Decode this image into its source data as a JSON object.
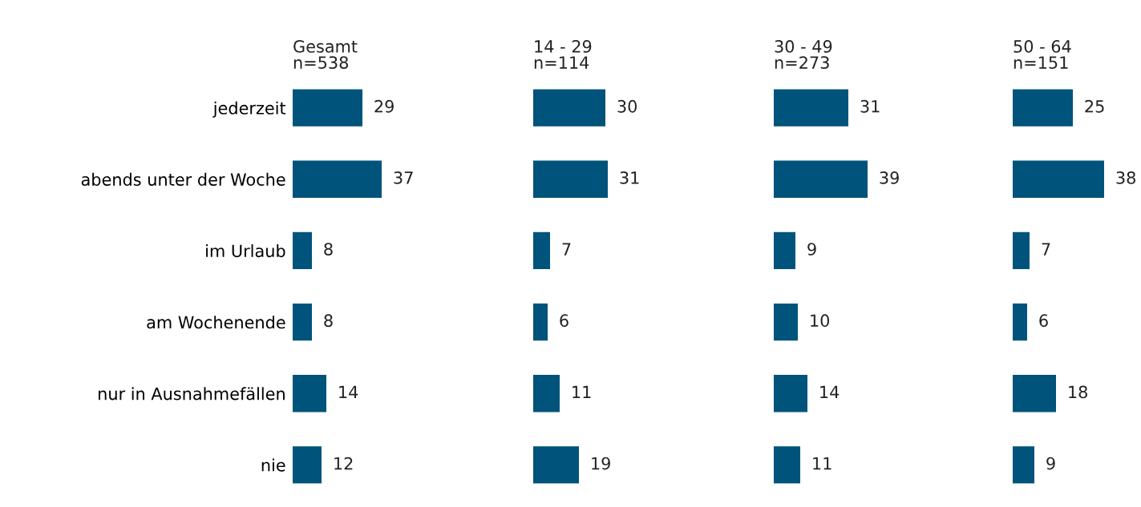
{
  "chart_data": [
    {
      "type": "bar",
      "orientation": "horizontal",
      "title": "Gesamt",
      "subtitle": "n=538",
      "categories": [
        "jederzeit",
        "abends unter der Woche",
        "im Urlaub",
        "am Wochenende",
        "nur in Ausnahmefällen",
        "nie"
      ],
      "values": [
        29,
        37,
        8,
        8,
        14,
        12
      ],
      "color": "#00537a",
      "data_labels": true,
      "tick_labels": "y"
    },
    {
      "type": "bar",
      "orientation": "horizontal",
      "title": "14 - 29",
      "subtitle": "n=114",
      "categories": [
        null,
        null,
        null,
        null,
        null,
        null
      ],
      "values": [
        30,
        31,
        7,
        6,
        11,
        19
      ],
      "color": "#00537a",
      "data_labels": true,
      "tick_labels": false
    },
    {
      "type": "bar",
      "orientation": "horizontal",
      "title": "30 - 49",
      "subtitle": "n=273",
      "categories": [
        null,
        null,
        null,
        null,
        null,
        null
      ],
      "values": [
        31,
        39,
        9,
        10,
        14,
        11
      ],
      "color": "#00537a",
      "data_labels": true,
      "tick_labels": false
    },
    {
      "type": "bar",
      "orientation": "horizontal",
      "title": "50 - 64",
      "subtitle": "n=151",
      "categories": [
        null,
        null,
        null,
        null,
        null,
        null
      ],
      "values": [
        25,
        38,
        7,
        6,
        18,
        9
      ],
      "color": "#00537a",
      "data_labels": true,
      "tick_labels": false
    }
  ]
}
